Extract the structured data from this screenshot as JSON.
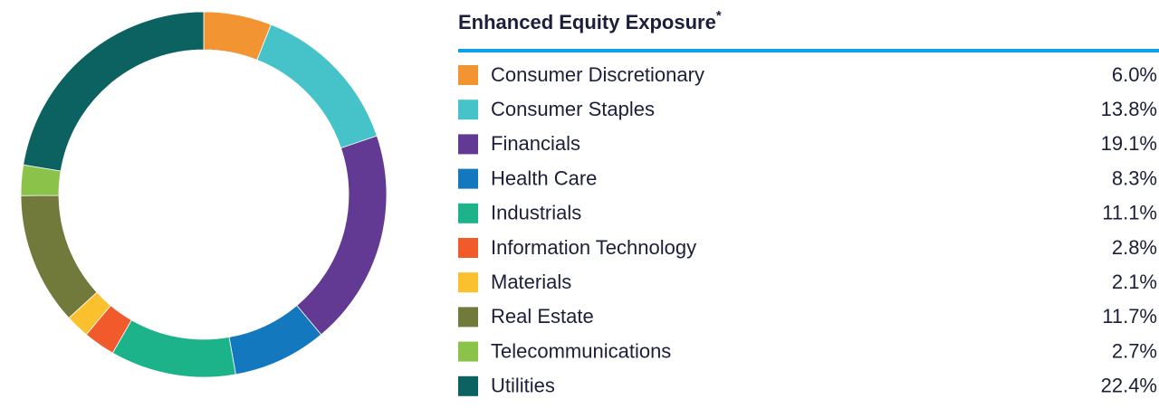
{
  "chart_data": {
    "type": "pie",
    "donut": true,
    "title": "Enhanced Equity Exposure",
    "title_mark": "*",
    "categories": [
      "Consumer Discretionary",
      "Consumer Staples",
      "Financials",
      "Health Care",
      "Industrials",
      "Information Technology",
      "Materials",
      "Real Estate",
      "Telecommunications",
      "Utilities"
    ],
    "values": [
      6.0,
      13.8,
      19.1,
      8.3,
      11.1,
      2.8,
      2.1,
      11.7,
      2.7,
      22.4
    ],
    "value_labels": [
      "6.0%",
      "13.8%",
      "19.1%",
      "8.3%",
      "11.1%",
      "2.8%",
      "2.1%",
      "11.7%",
      "2.7%",
      "22.4%"
    ],
    "colors": [
      "#f39433",
      "#45c3c8",
      "#633a93",
      "#1478be",
      "#1db38a",
      "#f15a2b",
      "#fbc02d",
      "#717a3a",
      "#8bc34a",
      "#0b6261"
    ]
  }
}
